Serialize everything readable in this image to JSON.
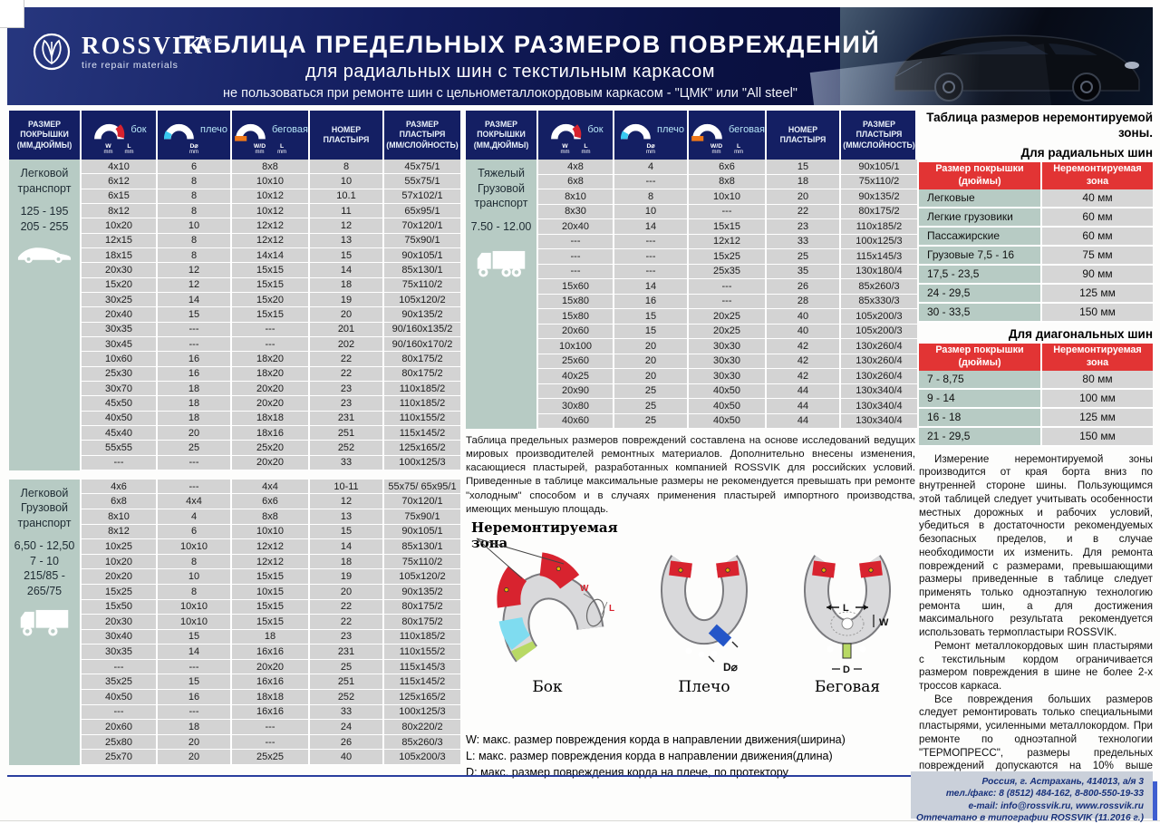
{
  "header": {
    "logo": {
      "brand": "ROSSVIK",
      "reg": "®",
      "tagline": "tire repair materials"
    },
    "title": "ТАБЛИЦА ПРЕДЕЛЬНЫХ РАЗМЕРОВ ПОВРЕЖДЕНИЙ",
    "subtitle": "для радиальных шин с текстильным каркасом",
    "warning": "не пользоваться при ремонте шин с цельнометаллокордовым каркасом - \"ЦМК\" или \"All steel\""
  },
  "columns": {
    "size_lines": [
      "РАЗМЕР",
      "ПОКРЫШКИ",
      "(ММ,ДЮЙМЫ)"
    ],
    "side_label": "бок",
    "side_units": [
      "W",
      "L"
    ],
    "shoulder_label": "плечо",
    "shoulder_units": [
      "D⌀"
    ],
    "tread_label": "беговая",
    "tread_units": [
      "W/D",
      "L"
    ],
    "mm": "mm",
    "patch_no_lines": [
      "НОМЕР",
      "ПЛАСТЫРЯ"
    ],
    "patch_size_lines": [
      "РАЗМЕР",
      "ПЛАСТЫРЯ",
      "(ММ/СЛОЙНОСТЬ)"
    ]
  },
  "left_table": {
    "section1": {
      "category_lines": [
        "Легковой",
        "транспорт",
        "",
        "125 - 195",
        "205 - 255"
      ],
      "rows": [
        [
          "4x10",
          "6",
          "8x8",
          "8",
          "45x75/1"
        ],
        [
          "6x12",
          "8",
          "10x10",
          "10",
          "55x75/1"
        ],
        [
          "6x15",
          "8",
          "10x12",
          "10.1",
          "57x102/1"
        ],
        [
          "8x12",
          "8",
          "10x12",
          "11",
          "65x95/1"
        ],
        [
          "10x20",
          "10",
          "12x12",
          "12",
          "70x120/1"
        ],
        [
          "12x15",
          "8",
          "12x12",
          "13",
          "75x90/1"
        ],
        [
          "18x15",
          "8",
          "14x14",
          "15",
          "90x105/1"
        ],
        [
          "20x30",
          "12",
          "15x15",
          "14",
          "85x130/1"
        ],
        [
          "15x20",
          "12",
          "15x15",
          "18",
          "75x110/2"
        ],
        [
          "30x25",
          "14",
          "15x20",
          "19",
          "105x120/2"
        ],
        [
          "20x40",
          "15",
          "15x15",
          "20",
          "90x135/2"
        ],
        [
          "30x35",
          "---",
          "---",
          "201",
          "90/160x135/2"
        ],
        [
          "30x45",
          "---",
          "---",
          "202",
          "90/160x170/2"
        ],
        [
          "10x60",
          "16",
          "18x20",
          "22",
          "80x175/2"
        ],
        [
          "25x30",
          "16",
          "18x20",
          "22",
          "80x175/2"
        ],
        [
          "30x70",
          "18",
          "20x20",
          "23",
          "110x185/2"
        ],
        [
          "45x50",
          "18",
          "20x20",
          "23",
          "110x185/2"
        ],
        [
          "40x50",
          "18",
          "18x18",
          "231",
          "110x155/2"
        ],
        [
          "45x40",
          "20",
          "18x16",
          "251",
          "115x145/2"
        ],
        [
          "55x55",
          "25",
          "25x20",
          "252",
          "125x165/2"
        ],
        [
          "---",
          "---",
          "20x20",
          "33",
          "100x125/3"
        ]
      ]
    },
    "section2": {
      "category_lines": [
        "Легковой",
        "Грузовой",
        "транспорт",
        "",
        "6,50 - 12,50",
        "7 - 10",
        "215/85 -",
        "265/75"
      ],
      "rows": [
        [
          "4x6",
          "---",
          "4x4",
          "10-11",
          "55x75/ 65x95/1"
        ],
        [
          "6x8",
          "4x4",
          "6x6",
          "12",
          "70x120/1"
        ],
        [
          "8x10",
          "4",
          "8x8",
          "13",
          "75x90/1"
        ],
        [
          "8x12",
          "6",
          "10x10",
          "15",
          "90x105/1"
        ],
        [
          "10x25",
          "10x10",
          "12x12",
          "14",
          "85x130/1"
        ],
        [
          "10x20",
          "8",
          "12x12",
          "18",
          "75x110/2"
        ],
        [
          "20x20",
          "10",
          "15x15",
          "19",
          "105x120/2"
        ],
        [
          "15x25",
          "8",
          "10x15",
          "20",
          "90x135/2"
        ],
        [
          "15x50",
          "10x10",
          "15x15",
          "22",
          "80x175/2"
        ],
        [
          "20x30",
          "10x10",
          "15x15",
          "22",
          "80x175/2"
        ],
        [
          "30x40",
          "15",
          "18",
          "23",
          "110x185/2"
        ],
        [
          "30x35",
          "14",
          "16x16",
          "231",
          "110x155/2"
        ],
        [
          "---",
          "---",
          "20x20",
          "25",
          "115x145/3"
        ],
        [
          "35x25",
          "15",
          "16x16",
          "251",
          "115x145/2"
        ],
        [
          "40x50",
          "16",
          "18x18",
          "252",
          "125x165/2"
        ],
        [
          "---",
          "---",
          "16x16",
          "33",
          "100x125/3"
        ],
        [
          "20x60",
          "18",
          "---",
          "24",
          "80x220/2"
        ],
        [
          "25x80",
          "20",
          "---",
          "26",
          "85x260/3"
        ],
        [
          "25x70",
          "20",
          "25x25",
          "40",
          "105x200/3"
        ]
      ]
    }
  },
  "middle_table": {
    "category_lines": [
      "Тяжелый",
      "Грузовой",
      "транспорт",
      "",
      "7.50 - 12.00"
    ],
    "rows": [
      [
        "4x8",
        "4",
        "6x6",
        "15",
        "90x105/1"
      ],
      [
        "6x8",
        "---",
        "8x8",
        "18",
        "75x110/2"
      ],
      [
        "8x10",
        "8",
        "10x10",
        "20",
        "90x135/2"
      ],
      [
        "8x30",
        "10",
        "---",
        "22",
        "80x175/2"
      ],
      [
        "20x40",
        "14",
        "15x15",
        "23",
        "110x185/2"
      ],
      [
        "---",
        "---",
        "12x12",
        "33",
        "100x125/3"
      ],
      [
        "---",
        "---",
        "15x25",
        "25",
        "115x145/3"
      ],
      [
        "---",
        "---",
        "25x35",
        "35",
        "130x180/4"
      ],
      [
        "15x60",
        "14",
        "---",
        "26",
        "85x260/3"
      ],
      [
        "15x80",
        "16",
        "---",
        "28",
        "85x330/3"
      ],
      [
        "15x80",
        "15",
        "20x25",
        "40",
        "105x200/3"
      ],
      [
        "20x60",
        "15",
        "20x25",
        "40",
        "105x200/3"
      ],
      [
        "10x100",
        "20",
        "30x30",
        "42",
        "130x260/4"
      ],
      [
        "25x60",
        "20",
        "30x30",
        "42",
        "130x260/4"
      ],
      [
        "40x25",
        "20",
        "30x30",
        "42",
        "130x260/4"
      ],
      [
        "20x90",
        "25",
        "40x50",
        "44",
        "130x340/4"
      ],
      [
        "30x80",
        "25",
        "40x50",
        "44",
        "130x340/4"
      ],
      [
        "40x60",
        "25",
        "40x50",
        "44",
        "130x340/4"
      ]
    ]
  },
  "note": "Таблица предельных размеров повреждений составлена на основе исследований ведущих мировых производителей ремонтных материалов. Дополнительно внесены изменения, касающиеся пластырей, разработанных компанией ROSSVIK для российских условий. Приведенные в таблице максимальные размеры не рекомендуется превышать при ремонте \"холодным\" способом и в случаях применения пластырей импортного производства, имеющих меньшую площадь.",
  "diagrams": {
    "zone_label_lines": [
      "Неремонтируемая",
      "зона"
    ],
    "captions": [
      "Бок",
      "Плечо",
      "Беговая"
    ],
    "legend": [
      "W: макс. размер повреждения корда в направлении движения(ширина)",
      "L: макс. размер повреждения корда в направлении движения(длина)",
      "D: макс. размер повреждения корда на плече, по протектору"
    ]
  },
  "right_panel": {
    "title": "Таблица размеров неремонтируемой зоны.",
    "radial_subtitle": "Для радиальных шин",
    "table_header": {
      "col1_lines": [
        "Размер покрышки",
        "(дюймы)"
      ],
      "col2_lines": [
        "Неремонтируемая",
        "зона"
      ]
    },
    "radial_rows": [
      [
        "Легковые",
        "40 мм"
      ],
      [
        "Легкие грузовики",
        "60 мм"
      ],
      [
        "Пассажирские",
        "60 мм"
      ],
      [
        "Грузовые 7,5 - 16",
        "75 мм"
      ],
      [
        "17,5 - 23,5",
        "90 мм"
      ],
      [
        "24 - 29,5",
        "125 мм"
      ],
      [
        "30 - 33,5",
        "150 мм"
      ]
    ],
    "diagonal_subtitle": "Для диагональных шин",
    "diagonal_rows": [
      [
        "7 - 8,75",
        "80 мм"
      ],
      [
        "9 - 14",
        "100 мм"
      ],
      [
        "16 - 18",
        "125 мм"
      ],
      [
        "21 - 29,5",
        "150 мм"
      ]
    ],
    "paragraphs": [
      "Измерение неремонтируемой зоны производится от края борта вниз по внутренней стороне шины. Пользующимся этой таблицей следует учитывать особенности местных дорожных и рабочих условий, убедиться в достаточности рекомендуемых безопасных пределов, и в случае необходимости их изменить. Для ремонта повреждений с размерами, превышающими размеры приведенные в таблице следует применять только одноэтапную технологию ремонта шин, а для достижения максимального результата рекомендуется использовать термопластыри ROSSVIK.",
      "Ремонт металлокордовых шин пластырями с текстильным кордом ограничивается размером повреждения в шине не более 2-х троссов каркаса.",
      "Все повреждения больших размеров следует ремонтировать только специальными пластырями, усиленными металлокордом. При ремонте по одноэтапной технологии \"ТЕРМОПРЕСС\", размеры предельных повреждений допускаются на 10% выше табличных, а при ремонте термопластырями ROSSVIK - на 20% выше табличных, без снижения качества ремонта."
    ],
    "footer_lines": [
      "Россия, г. Астрахань, 414013, а/я 3",
      "тел./факс: 8 (8512) 484-162, 8-800-550-19-33",
      "e-mail: info@rossvik.ru, www.rossvik.ru",
      "Отпечатано в типографии ROSSVIK (11.2016 г.)"
    ]
  },
  "colors": {
    "navy": "#141f63",
    "red_accent": "#e23434",
    "sage": "#b7cbc4",
    "cell_gray": "#d3d3d3",
    "side_red": "#d8232f",
    "shoulder_cyan": "#39c9f0",
    "tread_orange": "#f07818"
  }
}
